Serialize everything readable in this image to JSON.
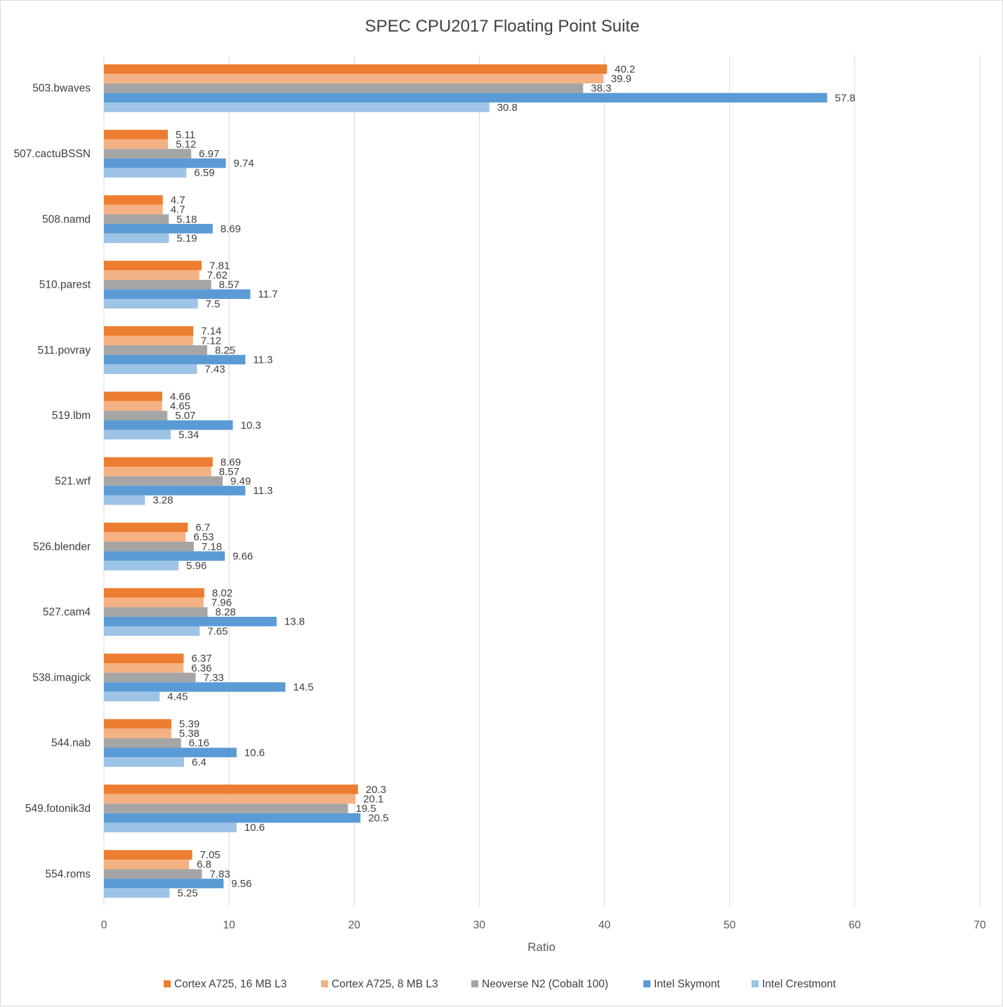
{
  "chart_data": {
    "type": "bar",
    "orientation": "horizontal",
    "title": "SPEC CPU2017 Floating Point Suite",
    "xlabel": "Ratio",
    "ylabel": "",
    "xlim": [
      0,
      70
    ],
    "x_ticks": [
      0,
      10,
      20,
      30,
      40,
      50,
      60,
      70
    ],
    "grid": true,
    "legend_position": "bottom",
    "categories": [
      "503.bwaves",
      "507.cactuBSSN",
      "508.namd",
      "510.parest",
      "511.povray",
      "519.lbm",
      "521.wrf",
      "526.blender",
      "527.cam4",
      "538.imagick",
      "544.nab",
      "549.fotonik3d",
      "554.roms"
    ],
    "series": [
      {
        "name": "Cortex A725, 16 MB L3",
        "color": "#ED7D31",
        "values": [
          40.2,
          5.11,
          4.7,
          7.81,
          7.14,
          4.66,
          8.69,
          6.7,
          8.02,
          6.37,
          5.39,
          20.3,
          7.05
        ]
      },
      {
        "name": "Cortex A725, 8 MB L3",
        "color": "#F4B183",
        "values": [
          39.9,
          5.12,
          4.7,
          7.62,
          7.12,
          4.65,
          8.57,
          6.53,
          7.96,
          6.36,
          5.38,
          20.1,
          6.8
        ]
      },
      {
        "name": "Neoverse N2 (Cobalt 100)",
        "color": "#A5A5A5",
        "values": [
          38.3,
          6.97,
          5.18,
          8.57,
          8.25,
          5.07,
          9.49,
          7.18,
          8.28,
          7.33,
          6.16,
          19.5,
          7.83
        ]
      },
      {
        "name": "Intel Skymont",
        "color": "#5B9BD5",
        "values": [
          57.8,
          9.74,
          8.69,
          11.7,
          11.3,
          10.3,
          11.3,
          9.66,
          13.8,
          14.5,
          10.6,
          20.5,
          9.56
        ]
      },
      {
        "name": "Intel Crestmont",
        "color": "#9DC3E6",
        "values": [
          30.8,
          6.59,
          5.19,
          7.5,
          7.43,
          5.34,
          3.28,
          5.96,
          7.65,
          4.45,
          6.4,
          10.6,
          5.25
        ]
      }
    ]
  }
}
